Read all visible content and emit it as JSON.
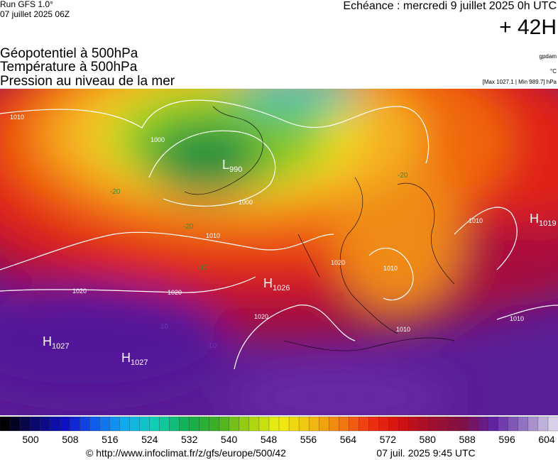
{
  "header": {
    "run": "Run GFS 1.0°",
    "run_date": "07 juillet 2025 06Z",
    "echeance": "Echéance : mercredi 9 juillet 2025 0h UTC",
    "lead": "+ 42H",
    "layers": [
      "Géopotentiel à 500hPa",
      "Température à 500hPa",
      "Pression au niveau de la mer"
    ],
    "unit_geo": "gpdam",
    "unit_temp": "°C",
    "pressure_range": "[Max 1027.1 | Min 989.7] hPa"
  },
  "map": {
    "centers": [
      {
        "letter": "L",
        "value": "990"
      },
      {
        "letter": "H",
        "value": "1026"
      },
      {
        "letter": "H",
        "value": "1019"
      },
      {
        "letter": "H",
        "value": "1027"
      },
      {
        "letter": "H",
        "value": "1027"
      }
    ],
    "isobar_labels": [
      "1010",
      "1020",
      "1020",
      "1020",
      "1010",
      "1000",
      "1010",
      "1010",
      "1010",
      "1020",
      "1010",
      "1000"
    ],
    "temp_labels": [
      "-20",
      "-20",
      "-20",
      "-10",
      "10",
      "10",
      "-10"
    ]
  },
  "colorbar": {
    "ticks": [
      "500",
      "508",
      "516",
      "524",
      "532",
      "540",
      "548",
      "556",
      "564",
      "572",
      "580",
      "588",
      "596",
      "604"
    ]
  },
  "footer": {
    "url": "© http://www.infoclimat.fr/z/gfs/europe/500/42",
    "time": "07 juil. 2025  9:45 UTC"
  }
}
